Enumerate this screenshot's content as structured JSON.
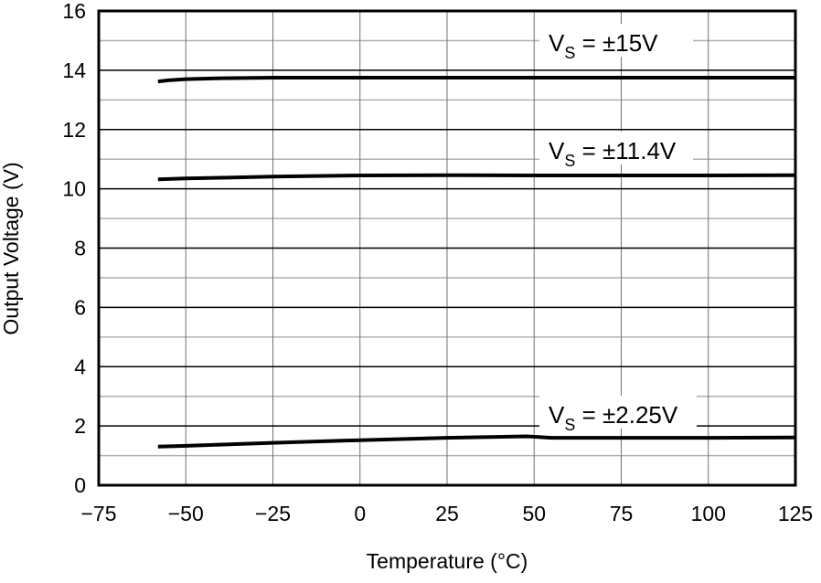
{
  "chart_data": {
    "type": "line",
    "title": "",
    "xlabel": "Temperature (°C)",
    "ylabel": "Output Voltage (V)",
    "xlim": [
      -75,
      125
    ],
    "ylim": [
      0,
      16
    ],
    "xticks": [
      -75,
      -50,
      -25,
      0,
      25,
      50,
      75,
      100,
      125
    ],
    "xtick_labels": [
      "−75",
      "−50",
      "−25",
      "0",
      "25",
      "50",
      "75",
      "100",
      "125"
    ],
    "yticks": [
      0,
      2,
      4,
      6,
      8,
      10,
      12,
      14,
      16
    ],
    "ytick_labels": [
      "0",
      "2",
      "4",
      "6",
      "8",
      "10",
      "12",
      "14",
      "16"
    ],
    "grid": true,
    "legend": "none",
    "series": [
      {
        "name": "VS = ±15V",
        "label_main": "V",
        "label_sub": "S",
        "label_rest": " = ±15V",
        "x": [
          -58,
          -55,
          -50,
          -40,
          -25,
          0,
          25,
          50,
          75,
          100,
          125
        ],
        "y": [
          13.62,
          13.66,
          13.7,
          13.73,
          13.75,
          13.75,
          13.75,
          13.75,
          13.75,
          13.75,
          13.75
        ]
      },
      {
        "name": "VS = ±11.4V",
        "label_main": "V",
        "label_sub": "S",
        "label_rest": " = ±11.4V",
        "x": [
          -58,
          -50,
          -25,
          0,
          25,
          50,
          75,
          100,
          125
        ],
        "y": [
          10.32,
          10.35,
          10.41,
          10.45,
          10.46,
          10.45,
          10.45,
          10.45,
          10.46
        ]
      },
      {
        "name": "VS = ±2.25V",
        "label_main": "V",
        "label_sub": "S",
        "label_rest": " = ±2.25V",
        "x": [
          -58,
          -50,
          -25,
          0,
          25,
          48,
          55,
          75,
          100,
          125
        ],
        "y": [
          1.3,
          1.33,
          1.43,
          1.52,
          1.6,
          1.65,
          1.6,
          1.6,
          1.6,
          1.61
        ]
      }
    ],
    "colors": {
      "line": "#000000",
      "major_grid": "#000000",
      "minor_grid": "#b0b0b0",
      "vgrid": "#707070"
    }
  }
}
